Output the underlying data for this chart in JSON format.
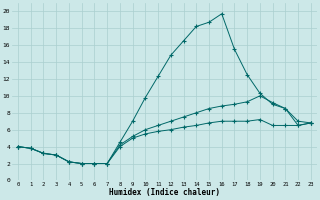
{
  "xlabel": "Humidex (Indice chaleur)",
  "bg_color": "#cce8e8",
  "grid_color": "#aacfcf",
  "line_color": "#006868",
  "line1_x": [
    0,
    1,
    2,
    3,
    4,
    5,
    6,
    7,
    8,
    9,
    10,
    11,
    12,
    13,
    14,
    15,
    16,
    17,
    18,
    19,
    20,
    21,
    22,
    23
  ],
  "line1_y": [
    4,
    3.8,
    3.2,
    3,
    2.2,
    2,
    2,
    2,
    4.5,
    7,
    9.8,
    12.3,
    14.8,
    16.5,
    18.2,
    18.7,
    19.7,
    15.5,
    12.5,
    10.3,
    9,
    8.5,
    7,
    6.8
  ],
  "line2_x": [
    0,
    1,
    2,
    3,
    4,
    5,
    6,
    7,
    8,
    9,
    10,
    11,
    12,
    13,
    14,
    15,
    16,
    17,
    18,
    19,
    20,
    21,
    22,
    23
  ],
  "line2_y": [
    4,
    3.8,
    3.2,
    3,
    2.2,
    2,
    2,
    2,
    4.2,
    5.2,
    6,
    6.5,
    7,
    7.5,
    8,
    8.5,
    8.8,
    9,
    9.3,
    10,
    9.2,
    8.5,
    6.5,
    6.8
  ],
  "line3_x": [
    0,
    1,
    2,
    3,
    4,
    5,
    6,
    7,
    8,
    9,
    10,
    11,
    12,
    13,
    14,
    15,
    16,
    17,
    18,
    19,
    20,
    21,
    22,
    23
  ],
  "line3_y": [
    4,
    3.8,
    3.2,
    3,
    2.2,
    2,
    2,
    2,
    4.0,
    5.0,
    5.5,
    5.8,
    6.0,
    6.3,
    6.5,
    6.8,
    7.0,
    7.0,
    7.0,
    7.2,
    6.5,
    6.5,
    6.5,
    6.8
  ],
  "ylim": [
    0,
    21
  ],
  "xlim": [
    -0.5,
    23.5
  ],
  "yticks": [
    0,
    2,
    4,
    6,
    8,
    10,
    12,
    14,
    16,
    18,
    20
  ],
  "xticks": [
    0,
    1,
    2,
    3,
    4,
    5,
    6,
    7,
    8,
    9,
    10,
    11,
    12,
    13,
    14,
    15,
    16,
    17,
    18,
    19,
    20,
    21,
    22,
    23
  ]
}
